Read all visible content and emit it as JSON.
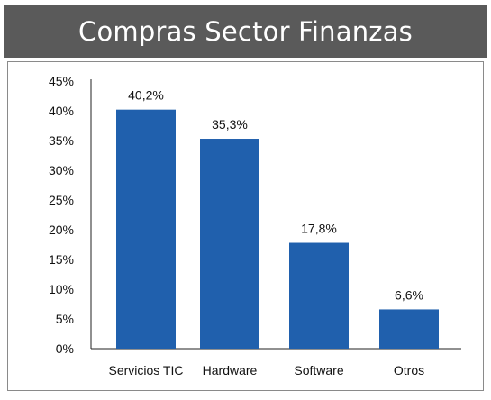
{
  "chart_data": {
    "type": "bar",
    "title": "Compras Sector Finanzas",
    "categories": [
      "Servicios TIC",
      "Hardware",
      "Software",
      "Otros"
    ],
    "values": [
      40.2,
      35.3,
      17.8,
      6.6
    ],
    "value_labels": [
      "40,2%",
      "35,3%",
      "17,8%",
      "6,6%"
    ],
    "ylim": [
      0,
      45
    ],
    "yticks": [
      "0%",
      "5%",
      "10%",
      "15%",
      "20%",
      "25%",
      "30%",
      "35%",
      "40%",
      "45%"
    ],
    "xlabel": "",
    "ylabel": "",
    "grid": false,
    "legend": "none",
    "bar_color": "#2060ad",
    "title_background": "#5a5a5a"
  }
}
